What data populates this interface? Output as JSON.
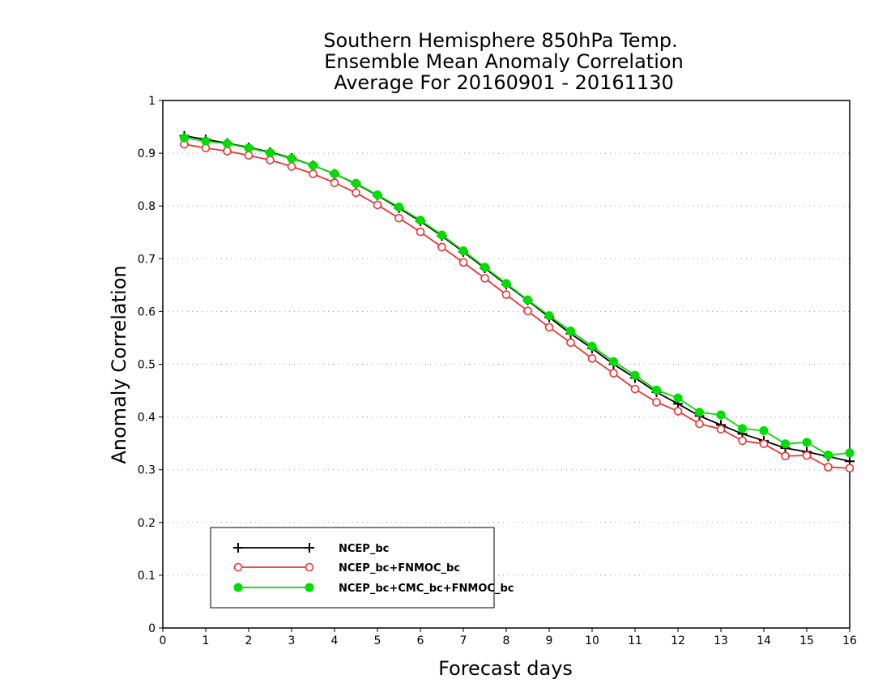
{
  "chart_data": {
    "type": "line",
    "title_lines": [
      "Southern Hemisphere 850hPa Temp.",
      "Ensemble Mean Anomaly Correlation",
      "Average For 20160901 - 20161130"
    ],
    "xlabel": "Forecast days",
    "ylabel": "Anomaly Correlation",
    "xlim": [
      0,
      16
    ],
    "ylim": [
      0,
      1
    ],
    "x_ticks": [
      "0",
      "1",
      "2",
      "3",
      "4",
      "5",
      "6",
      "7",
      "8",
      "9",
      "10",
      "11",
      "12",
      "13",
      "14",
      "15",
      "16"
    ],
    "y_ticks": [
      "0",
      "0.1",
      "0.2",
      "0.3",
      "0.4",
      "0.5",
      "0.6",
      "0.7",
      "0.8",
      "0.9",
      "1"
    ],
    "grid": "horizontal dotted",
    "legend_position": "bottom-left",
    "x": [
      0.5,
      1,
      1.5,
      2,
      2.5,
      3,
      3.5,
      4,
      4.5,
      5,
      5.5,
      6,
      6.5,
      7,
      7.5,
      8,
      8.5,
      9,
      9.5,
      10,
      10.5,
      11,
      11.5,
      12,
      12.5,
      13,
      13.5,
      14,
      14.5,
      15,
      15.5,
      16
    ],
    "series": [
      {
        "name": "NCEP_bc",
        "color": "#000000",
        "marker": "plus",
        "values": [
          0.933,
          0.926,
          0.919,
          0.911,
          0.902,
          0.891,
          0.877,
          0.861,
          0.842,
          0.82,
          0.796,
          0.771,
          0.743,
          0.713,
          0.682,
          0.651,
          0.621,
          0.589,
          0.558,
          0.53,
          0.5,
          0.474,
          0.447,
          0.425,
          0.402,
          0.385,
          0.368,
          0.355,
          0.341,
          0.334,
          0.325,
          0.316
        ]
      },
      {
        "name": "NCEP_bc+FNMOC_bc",
        "color": "#ee3333",
        "marker": "open-circle",
        "values": [
          0.917,
          0.91,
          0.904,
          0.896,
          0.887,
          0.875,
          0.861,
          0.844,
          0.825,
          0.802,
          0.777,
          0.751,
          0.722,
          0.693,
          0.663,
          0.632,
          0.601,
          0.57,
          0.541,
          0.511,
          0.483,
          0.453,
          0.428,
          0.411,
          0.387,
          0.377,
          0.355,
          0.349,
          0.326,
          0.327,
          0.305,
          0.303
        ]
      },
      {
        "name": "NCEP_bc+CMC_bc+FNMOC_bc",
        "color": "#00dd00",
        "marker": "filled-circle",
        "values": [
          0.929,
          0.923,
          0.918,
          0.91,
          0.901,
          0.89,
          0.877,
          0.861,
          0.843,
          0.821,
          0.798,
          0.773,
          0.745,
          0.715,
          0.684,
          0.653,
          0.622,
          0.592,
          0.563,
          0.534,
          0.505,
          0.479,
          0.451,
          0.436,
          0.409,
          0.404,
          0.378,
          0.374,
          0.349,
          0.352,
          0.328,
          0.332
        ]
      }
    ]
  }
}
